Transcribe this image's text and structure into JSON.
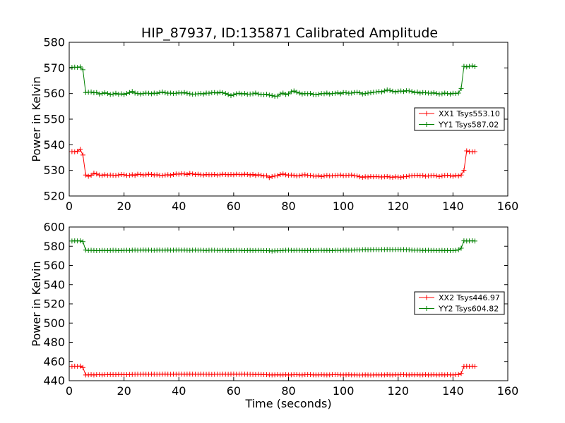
{
  "chart_data": [
    {
      "type": "line",
      "title": "HIP_87937, ID:135871 Calibrated Amplitude",
      "xlabel": "",
      "ylabel": "Power in Kelvin",
      "xlim": [
        0,
        160
      ],
      "ylim": [
        520,
        580
      ],
      "xticks": [
        "0",
        "20",
        "40",
        "60",
        "80",
        "100",
        "120",
        "140",
        "160"
      ],
      "yticks": [
        "520",
        "530",
        "540",
        "550",
        "560",
        "570",
        "580"
      ],
      "legend_position": "center-right",
      "x": [
        1,
        2,
        3,
        4,
        5,
        6,
        7,
        8,
        9,
        10,
        11,
        12,
        13,
        14,
        15,
        16,
        17,
        18,
        19,
        20,
        21,
        22,
        23,
        24,
        25,
        26,
        27,
        28,
        29,
        30,
        31,
        32,
        33,
        34,
        35,
        36,
        37,
        38,
        39,
        40,
        41,
        42,
        43,
        44,
        45,
        46,
        47,
        48,
        49,
        50,
        51,
        52,
        53,
        54,
        55,
        56,
        57,
        58,
        59,
        60,
        61,
        62,
        63,
        64,
        65,
        66,
        67,
        68,
        69,
        70,
        71,
        72,
        73,
        74,
        75,
        76,
        77,
        78,
        79,
        80,
        81,
        82,
        83,
        84,
        85,
        86,
        87,
        88,
        89,
        90,
        91,
        92,
        93,
        94,
        95,
        96,
        97,
        98,
        99,
        100,
        101,
        102,
        103,
        104,
        105,
        106,
        107,
        108,
        109,
        110,
        111,
        112,
        113,
        114,
        115,
        116,
        117,
        118,
        119,
        120,
        121,
        122,
        123,
        124,
        125,
        126,
        127,
        128,
        129,
        130,
        131,
        132,
        133,
        134,
        135,
        136,
        137,
        138,
        139,
        140,
        141,
        142,
        143,
        144,
        145,
        146,
        147,
        148
      ],
      "series": [
        {
          "name": "XX1 Tsys553.10",
          "color": "#ff0000",
          "values": [
            537.3,
            537.2,
            537.4,
            538.2,
            536.0,
            528.2,
            527.7,
            528.1,
            528.9,
            528.6,
            528.2,
            528.0,
            528.3,
            528.1,
            528.2,
            528.1,
            528.0,
            528.2,
            528.4,
            528.3,
            528.0,
            528.1,
            528.3,
            528.0,
            528.5,
            528.4,
            528.2,
            528.3,
            528.5,
            528.4,
            528.2,
            528.3,
            528.1,
            528.0,
            528.2,
            528.3,
            528.1,
            528.4,
            528.6,
            528.5,
            528.7,
            528.6,
            528.4,
            528.8,
            528.6,
            528.4,
            528.5,
            528.3,
            528.2,
            528.4,
            528.3,
            528.3,
            528.4,
            528.2,
            528.3,
            528.5,
            528.4,
            528.3,
            528.4,
            528.3,
            528.5,
            528.4,
            528.3,
            528.5,
            528.4,
            528.2,
            528.4,
            528.0,
            528.3,
            528.1,
            527.8,
            527.9,
            527.2,
            527.6,
            527.8,
            527.9,
            528.4,
            528.6,
            528.3,
            528.1,
            528.2,
            528.0,
            527.8,
            527.9,
            528.2,
            528.3,
            528.1,
            528.0,
            527.8,
            527.7,
            527.9,
            527.6,
            527.8,
            528.0,
            527.8,
            527.9,
            528.0,
            528.1,
            528.2,
            527.9,
            528.0,
            528.1,
            528.2,
            527.9,
            527.8,
            527.5,
            527.3,
            527.5,
            527.4,
            527.6,
            527.5,
            527.6,
            527.5,
            527.4,
            527.5,
            527.6,
            527.4,
            527.3,
            527.5,
            527.4,
            527.3,
            527.5,
            527.6,
            527.8,
            527.9,
            528.0,
            528.1,
            527.9,
            528.0,
            527.7,
            527.8,
            527.9,
            528.0,
            527.8,
            527.6,
            527.8,
            528.0,
            528.1,
            527.9,
            527.7,
            528.0,
            527.8,
            528.2,
            530.0,
            537.6,
            537.3,
            537.2,
            537.3
          ]
        },
        {
          "name": "YY1 Tsys587.02",
          "color": "#008000",
          "values": [
            570.2,
            570.3,
            570.2,
            570.4,
            569.3,
            560.4,
            560.5,
            560.6,
            560.3,
            560.4,
            559.8,
            560.0,
            560.3,
            560.0,
            559.6,
            559.8,
            560.1,
            559.7,
            559.9,
            559.6,
            560.0,
            560.4,
            560.8,
            560.2,
            560.0,
            559.8,
            560.0,
            560.2,
            560.1,
            559.9,
            560.2,
            560.0,
            560.4,
            560.6,
            560.3,
            560.1,
            560.2,
            560.0,
            560.1,
            560.3,
            560.2,
            560.4,
            560.1,
            559.9,
            559.7,
            559.8,
            559.9,
            560.0,
            559.8,
            560.2,
            560.1,
            560.3,
            560.4,
            560.2,
            560.5,
            560.3,
            560.0,
            559.6,
            559.2,
            559.5,
            559.9,
            560.1,
            559.8,
            560.0,
            559.7,
            559.8,
            559.9,
            560.2,
            559.8,
            559.6,
            559.5,
            559.7,
            559.4,
            559.2,
            558.9,
            559.0,
            559.8,
            560.2,
            559.6,
            559.9,
            560.7,
            561.0,
            560.5,
            560.2,
            559.8,
            560.0,
            559.9,
            560.0,
            559.6,
            559.5,
            559.7,
            560.0,
            559.9,
            560.2,
            559.8,
            560.0,
            560.1,
            560.3,
            559.9,
            560.4,
            560.3,
            560.1,
            560.2,
            560.4,
            560.5,
            560.3,
            559.8,
            560.0,
            560.2,
            560.3,
            560.5,
            560.6,
            560.8,
            560.6,
            561.0,
            561.4,
            561.2,
            560.9,
            560.6,
            560.9,
            561.0,
            560.8,
            561.1,
            561.0,
            560.8,
            560.4,
            560.6,
            560.2,
            560.4,
            560.3,
            560.2,
            560.1,
            560.3,
            560.0,
            559.8,
            559.9,
            560.2,
            560.0,
            559.8,
            560.1,
            560.0,
            560.2,
            562.0,
            570.6,
            570.4,
            570.6,
            570.8,
            570.5
          ]
        }
      ]
    },
    {
      "type": "line",
      "title": "",
      "xlabel": "Time (seconds)",
      "ylabel": "Power in Kelvin",
      "xlim": [
        0,
        160
      ],
      "ylim": [
        440,
        600
      ],
      "xticks": [
        "0",
        "20",
        "40",
        "60",
        "80",
        "100",
        "120",
        "140",
        "160"
      ],
      "yticks": [
        "440",
        "460",
        "480",
        "500",
        "520",
        "540",
        "560",
        "580",
        "600"
      ],
      "legend_position": "center-right",
      "x": [
        1,
        2,
        3,
        4,
        5,
        6,
        7,
        8,
        9,
        10,
        11,
        12,
        13,
        14,
        15,
        16,
        17,
        18,
        19,
        20,
        21,
        22,
        23,
        24,
        25,
        26,
        27,
        28,
        29,
        30,
        31,
        32,
        33,
        34,
        35,
        36,
        37,
        38,
        39,
        40,
        41,
        42,
        43,
        44,
        45,
        46,
        47,
        48,
        49,
        50,
        51,
        52,
        53,
        54,
        55,
        56,
        57,
        58,
        59,
        60,
        61,
        62,
        63,
        64,
        65,
        66,
        67,
        68,
        69,
        70,
        71,
        72,
        73,
        74,
        75,
        76,
        77,
        78,
        79,
        80,
        81,
        82,
        83,
        84,
        85,
        86,
        87,
        88,
        89,
        90,
        91,
        92,
        93,
        94,
        95,
        96,
        97,
        98,
        99,
        100,
        101,
        102,
        103,
        104,
        105,
        106,
        107,
        108,
        109,
        110,
        111,
        112,
        113,
        114,
        115,
        116,
        117,
        118,
        119,
        120,
        121,
        122,
        123,
        124,
        125,
        126,
        127,
        128,
        129,
        130,
        131,
        132,
        133,
        134,
        135,
        136,
        137,
        138,
        139,
        140,
        141,
        142,
        143,
        144,
        145,
        146,
        147,
        148
      ],
      "series": [
        {
          "name": "XX2 Tsys446.97",
          "color": "#ff0000",
          "values": [
            455.0,
            455.1,
            455.0,
            455.2,
            453.8,
            446.0,
            446.1,
            446.2,
            446.0,
            446.2,
            446.3,
            446.1,
            446.2,
            446.3,
            446.4,
            446.3,
            446.2,
            446.5,
            446.4,
            446.3,
            446.2,
            446.4,
            446.5,
            446.6,
            446.7,
            446.6,
            446.8,
            446.7,
            446.6,
            446.8,
            446.7,
            446.6,
            446.7,
            446.8,
            446.9,
            446.7,
            446.6,
            446.8,
            446.7,
            446.9,
            446.8,
            446.7,
            446.8,
            446.9,
            446.8,
            446.7,
            446.6,
            446.8,
            446.7,
            446.6,
            446.7,
            446.5,
            446.6,
            446.7,
            446.6,
            446.8,
            446.7,
            446.6,
            446.8,
            446.9,
            446.7,
            446.8,
            446.9,
            446.8,
            446.7,
            446.6,
            446.5,
            446.4,
            446.6,
            446.4,
            446.3,
            446.2,
            446.1,
            446.0,
            446.1,
            446.2,
            446.0,
            446.1,
            446.2,
            446.0,
            446.1,
            446.2,
            446.3,
            446.1,
            446.0,
            446.2,
            446.3,
            446.2,
            446.1,
            446.0,
            446.1,
            446.2,
            446.1,
            446.0,
            446.1,
            446.2,
            446.3,
            446.2,
            446.1,
            446.0,
            446.1,
            446.2,
            446.0,
            446.1,
            446.0,
            445.9,
            446.0,
            446.1,
            446.0,
            445.9,
            446.0,
            446.1,
            446.0,
            446.1,
            446.0,
            446.2,
            446.1,
            446.0,
            446.2,
            446.1,
            446.3,
            446.2,
            446.1,
            446.0,
            446.2,
            446.1,
            446.2,
            446.0,
            446.1,
            446.2,
            446.0,
            446.1,
            446.2,
            446.0,
            446.1,
            446.2,
            446.0,
            446.2,
            446.1,
            446.0,
            446.2,
            446.4,
            447.5,
            455.0,
            455.1,
            455.0,
            455.1,
            455.0
          ]
        },
        {
          "name": "YY2 Tsys604.82",
          "color": "#008000",
          "values": [
            585.4,
            585.6,
            585.5,
            585.6,
            584.8,
            576.0,
            575.6,
            575.8,
            575.6,
            575.4,
            575.5,
            575.7,
            575.6,
            575.5,
            575.6,
            575.8,
            575.7,
            575.5,
            575.6,
            575.7,
            575.8,
            575.6,
            575.9,
            576.0,
            575.8,
            575.9,
            576.1,
            575.9,
            576.0,
            575.8,
            575.7,
            575.9,
            576.0,
            575.8,
            575.9,
            576.1,
            575.8,
            575.9,
            576.0,
            576.1,
            575.9,
            576.0,
            575.8,
            575.7,
            575.9,
            576.0,
            575.8,
            575.9,
            575.7,
            575.6,
            575.8,
            575.9,
            575.8,
            575.7,
            575.6,
            575.8,
            575.7,
            575.6,
            575.5,
            575.6,
            575.8,
            575.7,
            575.6,
            575.4,
            575.6,
            575.7,
            575.5,
            575.6,
            575.7,
            575.6,
            575.4,
            575.5,
            575.3,
            575.0,
            575.2,
            575.3,
            575.4,
            575.6,
            575.8,
            575.9,
            575.7,
            575.6,
            575.8,
            575.7,
            575.6,
            575.5,
            575.6,
            575.7,
            575.5,
            575.6,
            575.7,
            575.8,
            575.6,
            575.7,
            575.6,
            575.5,
            575.7,
            575.8,
            575.6,
            575.9,
            576.0,
            575.8,
            575.9,
            576.0,
            576.2,
            576.1,
            576.3,
            576.4,
            576.2,
            576.3,
            576.4,
            576.5,
            576.3,
            576.5,
            576.4,
            576.6,
            576.5,
            576.4,
            576.5,
            576.6,
            576.4,
            576.5,
            576.3,
            576.2,
            576.0,
            575.8,
            575.9,
            575.8,
            575.6,
            575.7,
            575.8,
            575.6,
            575.7,
            575.5,
            575.6,
            575.7,
            575.5,
            575.6,
            575.4,
            575.5,
            575.7,
            576.2,
            578.0,
            585.6,
            585.4,
            585.5,
            585.7,
            585.4
          ]
        }
      ]
    }
  ]
}
